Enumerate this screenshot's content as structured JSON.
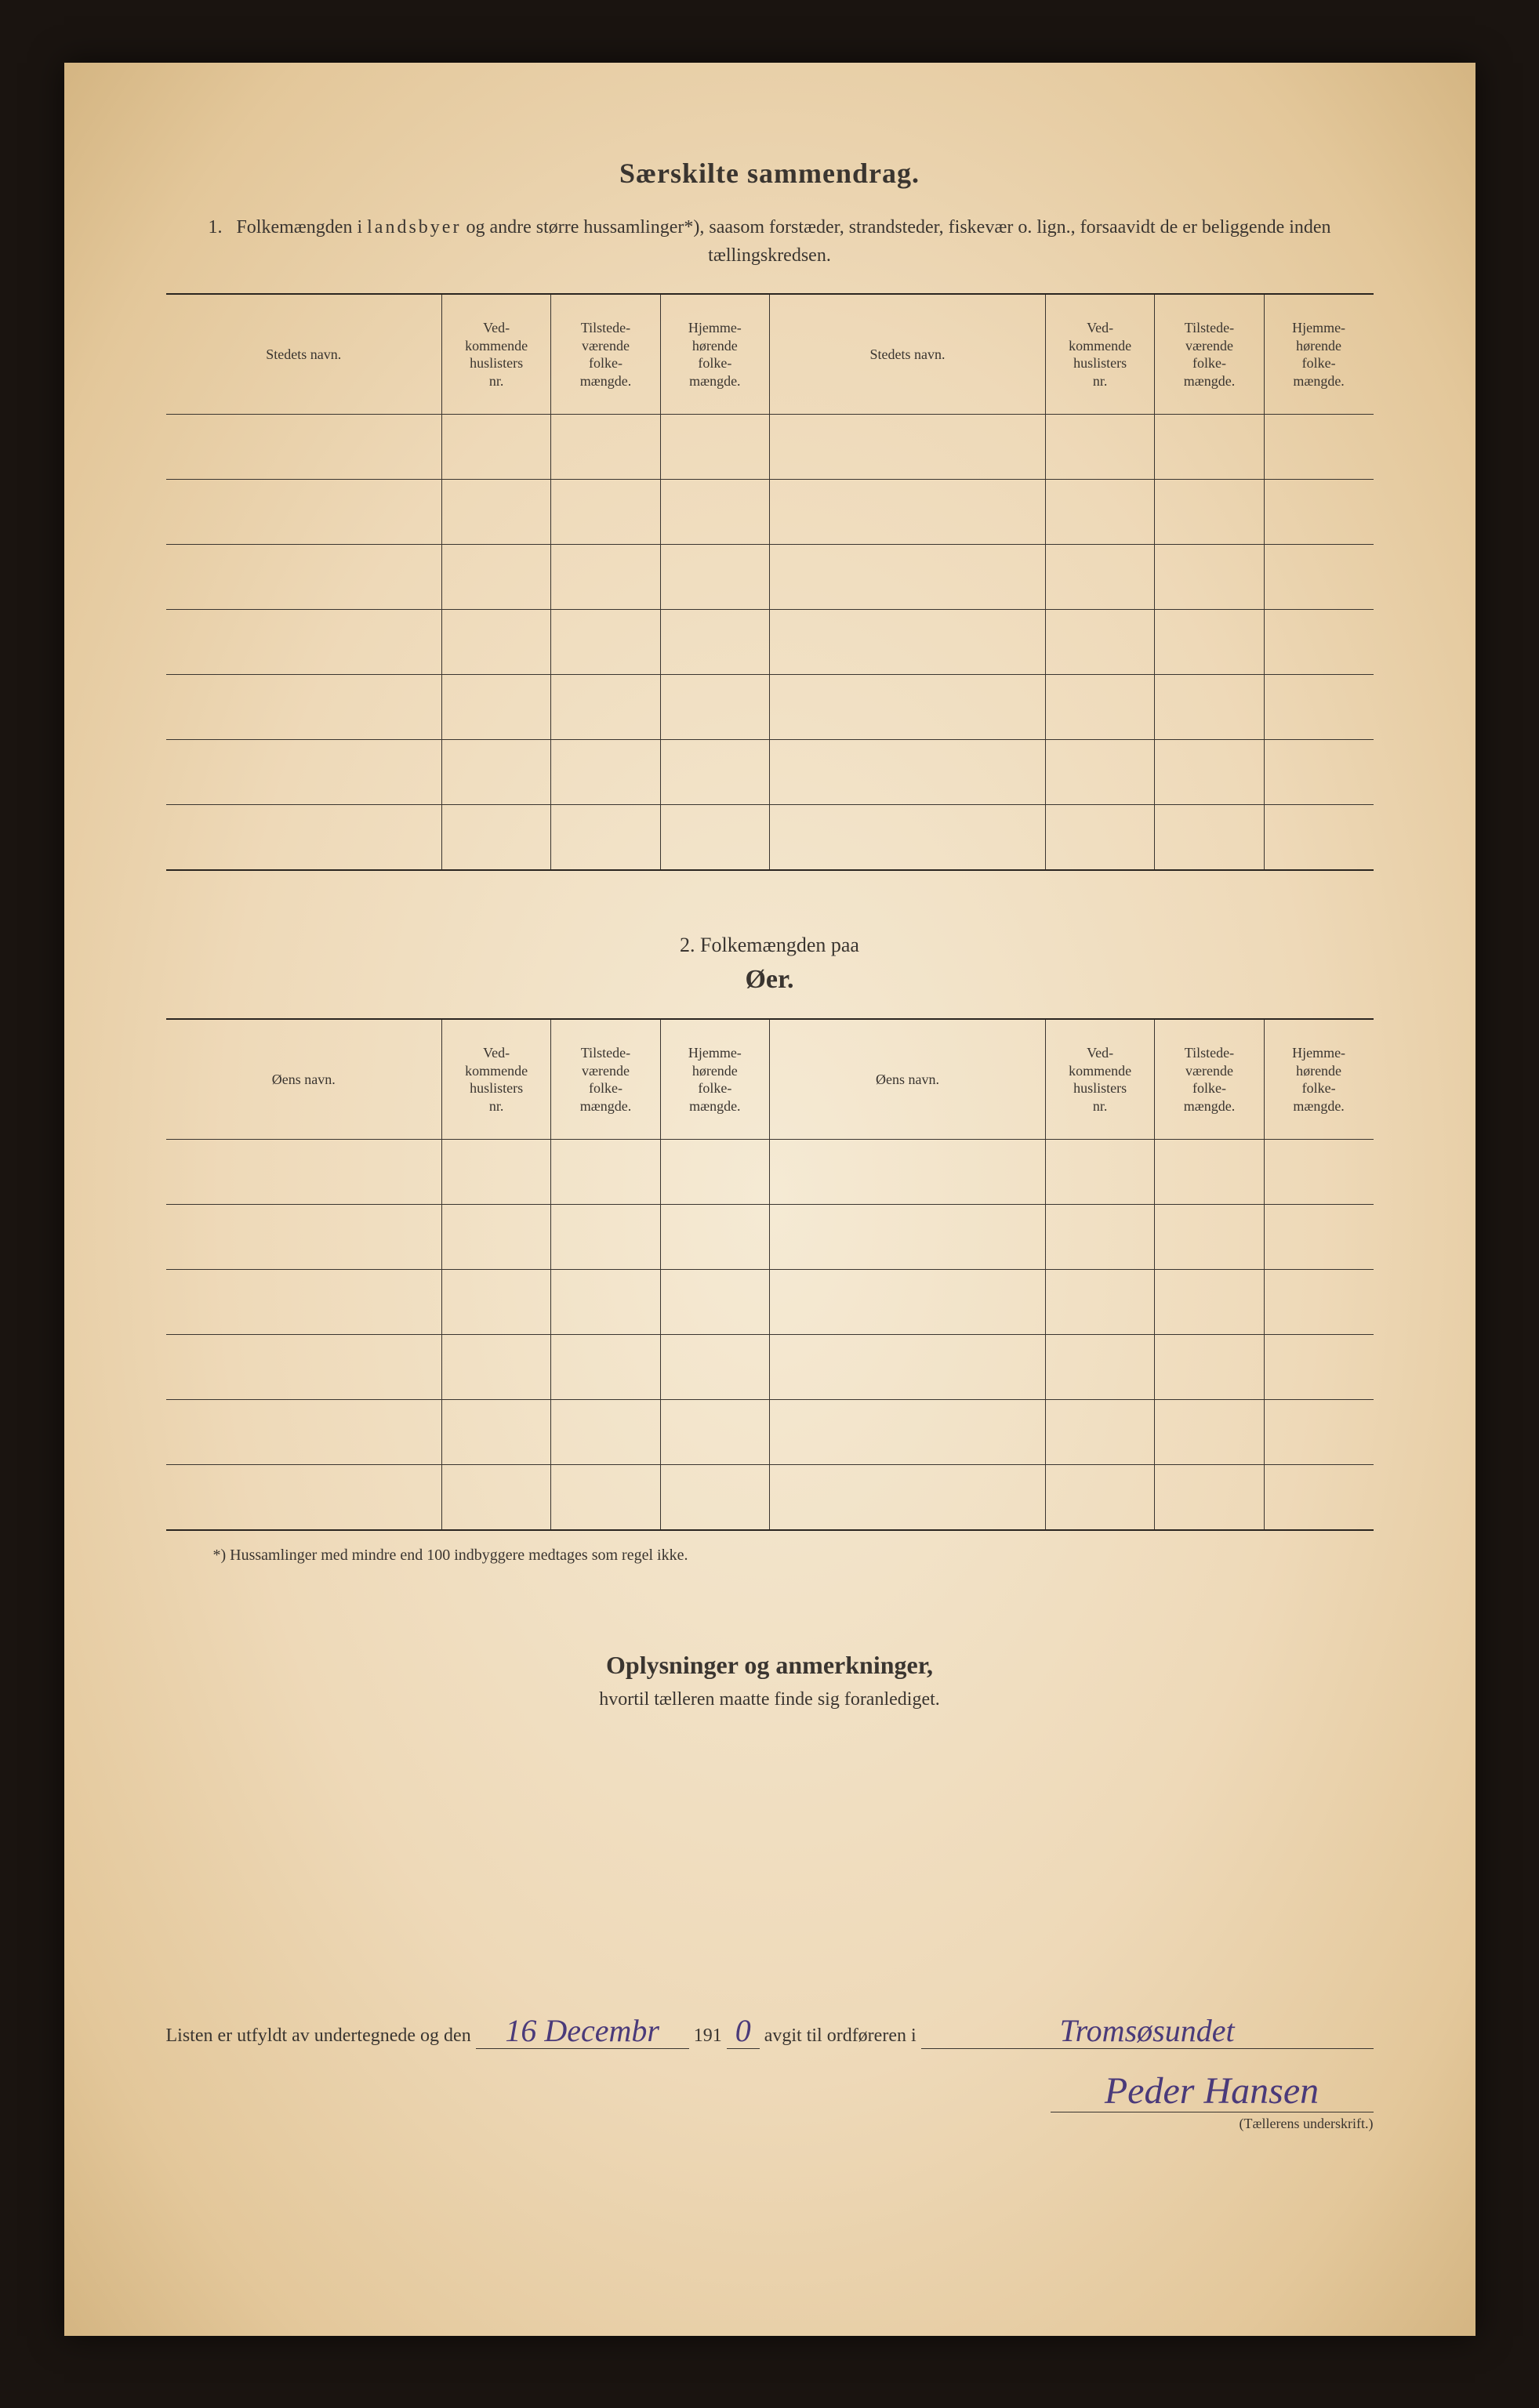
{
  "title": "Særskilte sammendrag.",
  "section1": {
    "number": "1.",
    "intro_pre": "Folkemængden i ",
    "intro_spaced": "landsbyer",
    "intro_post": " og andre større hussamlinger*), saasom forstæder, strandsteder, fiskevær o. lign., forsaavidt de er beliggende inden tællingskredsen.",
    "headers": {
      "name": "Stedets navn.",
      "huslister": "Ved-\nkommende\nhuslisters\nnr.",
      "tilstede": "Tilstede-\nværende\nfolke-\nmængde.",
      "hjemme": "Hjemme-\nhørende\nfolke-\nmængde."
    },
    "rows": 7
  },
  "section2": {
    "label": "2.   Folkemængden paa",
    "title": "Øer.",
    "headers": {
      "name": "Øens navn.",
      "huslister": "Ved-\nkommende\nhuslisters\nnr.",
      "tilstede": "Tilstede-\nværende\nfolke-\nmængde.",
      "hjemme": "Hjemme-\nhørende\nfolke-\nmængde."
    },
    "rows": 6
  },
  "footnote": "*) Hussamlinger med mindre end 100 indbyggere medtages som regel ikke.",
  "remarks": {
    "title": "Oplysninger og anmerkninger,",
    "sub": "hvortil tælleren maatte finde sig foranlediget."
  },
  "signature": {
    "pre": "Listen er utfyldt av undertegnede og den",
    "date_hand": "16 Decembr",
    "year_pre": "191",
    "year_hand": "0",
    "mid": "avgit til ordføreren i",
    "place_hand": "Tromsøsundet",
    "name_hand": "Peder Hansen",
    "caption": "(Tællerens underskrift.)"
  },
  "colors": {
    "ink": "#3a3530",
    "hand": "#4a3a7a",
    "paper_center": "#f5ead4",
    "paper_edge": "#d4b582",
    "background": "#1a1410"
  }
}
